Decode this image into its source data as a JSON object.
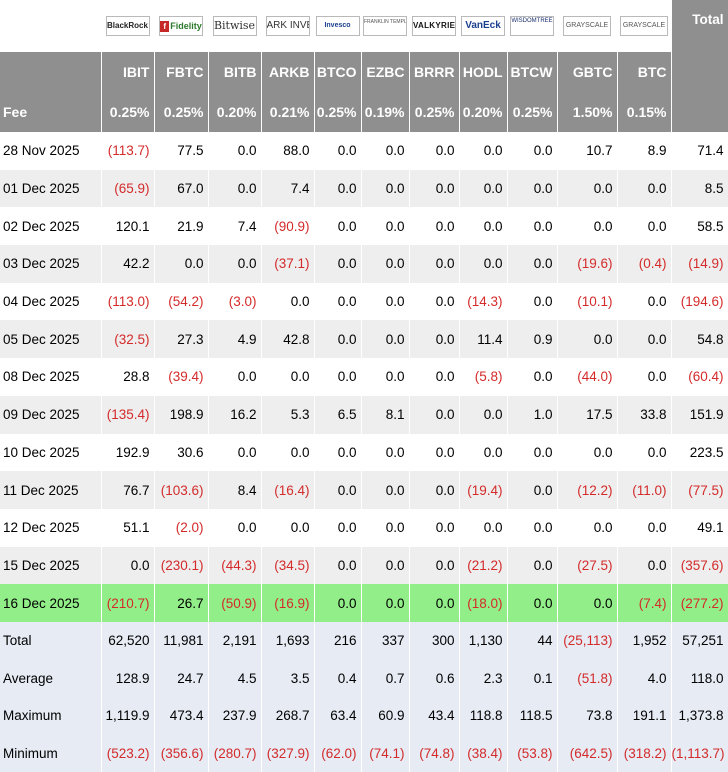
{
  "header": {
    "total_label": "Total",
    "fee_label": "Fee",
    "logos": [
      {
        "text": "BlackRock",
        "icon": "blackrock-logo"
      },
      {
        "text": "Fidelity",
        "icon": "fidelity-logo"
      },
      {
        "text": "Bitwise",
        "icon": "bitwise-logo"
      },
      {
        "text": "ARK INVEST",
        "icon": "ark-invest-logo"
      },
      {
        "text": "Invesco",
        "icon": "invesco-logo"
      },
      {
        "text": "FRANKLIN TEMPLETON",
        "icon": "franklin-templeton-logo"
      },
      {
        "text": "VALKYRIE",
        "icon": "valkyrie-logo"
      },
      {
        "text": "VanEck",
        "icon": "vaneck-logo"
      },
      {
        "text": "WISDOMTREE",
        "icon": "wisdomtree-logo"
      },
      {
        "text": "GRAYSCALE",
        "icon": "grayscale-logo"
      },
      {
        "text": "GRAYSCALE",
        "icon": "grayscale-logo"
      }
    ],
    "tickers": [
      "IBIT",
      "FBTC",
      "BITB",
      "ARKB",
      "BTCO",
      "EZBC",
      "BRRR",
      "HODL",
      "BTCW",
      "GBTC",
      "BTC"
    ],
    "fees": [
      "0.25%",
      "0.25%",
      "0.20%",
      "0.21%",
      "0.25%",
      "0.19%",
      "0.25%",
      "0.20%",
      "0.25%",
      "1.50%",
      "0.15%"
    ]
  },
  "rows": [
    {
      "date": "28 Nov 2025",
      "values": [
        "(113.7)",
        "77.5",
        "0.0",
        "88.0",
        "0.0",
        "0.0",
        "0.0",
        "0.0",
        "0.0",
        "10.7",
        "8.9"
      ],
      "total": "71.4"
    },
    {
      "date": "01 Dec 2025",
      "values": [
        "(65.9)",
        "67.0",
        "0.0",
        "7.4",
        "0.0",
        "0.0",
        "0.0",
        "0.0",
        "0.0",
        "0.0",
        "0.0"
      ],
      "total": "8.5"
    },
    {
      "date": "02 Dec 2025",
      "values": [
        "120.1",
        "21.9",
        "7.4",
        "(90.9)",
        "0.0",
        "0.0",
        "0.0",
        "0.0",
        "0.0",
        "0.0",
        "0.0"
      ],
      "total": "58.5"
    },
    {
      "date": "03 Dec 2025",
      "values": [
        "42.2",
        "0.0",
        "0.0",
        "(37.1)",
        "0.0",
        "0.0",
        "0.0",
        "0.0",
        "0.0",
        "(19.6)",
        "(0.4)"
      ],
      "total": "(14.9)"
    },
    {
      "date": "04 Dec 2025",
      "values": [
        "(113.0)",
        "(54.2)",
        "(3.0)",
        "0.0",
        "0.0",
        "0.0",
        "0.0",
        "(14.3)",
        "0.0",
        "(10.1)",
        "0.0"
      ],
      "total": "(194.6)"
    },
    {
      "date": "05 Dec 2025",
      "values": [
        "(32.5)",
        "27.3",
        "4.9",
        "42.8",
        "0.0",
        "0.0",
        "0.0",
        "11.4",
        "0.9",
        "0.0",
        "0.0"
      ],
      "total": "54.8"
    },
    {
      "date": "08 Dec 2025",
      "values": [
        "28.8",
        "(39.4)",
        "0.0",
        "0.0",
        "0.0",
        "0.0",
        "0.0",
        "(5.8)",
        "0.0",
        "(44.0)",
        "0.0"
      ],
      "total": "(60.4)"
    },
    {
      "date": "09 Dec 2025",
      "values": [
        "(135.4)",
        "198.9",
        "16.2",
        "5.3",
        "6.5",
        "8.1",
        "0.0",
        "0.0",
        "1.0",
        "17.5",
        "33.8"
      ],
      "total": "151.9"
    },
    {
      "date": "10 Dec 2025",
      "values": [
        "192.9",
        "30.6",
        "0.0",
        "0.0",
        "0.0",
        "0.0",
        "0.0",
        "0.0",
        "0.0",
        "0.0",
        "0.0"
      ],
      "total": "223.5"
    },
    {
      "date": "11 Dec 2025",
      "values": [
        "76.7",
        "(103.6)",
        "8.4",
        "(16.4)",
        "0.0",
        "0.0",
        "0.0",
        "(19.4)",
        "0.0",
        "(12.2)",
        "(11.0)"
      ],
      "total": "(77.5)"
    },
    {
      "date": "12 Dec 2025",
      "values": [
        "51.1",
        "(2.0)",
        "0.0",
        "0.0",
        "0.0",
        "0.0",
        "0.0",
        "0.0",
        "0.0",
        "0.0",
        "0.0"
      ],
      "total": "49.1"
    },
    {
      "date": "15 Dec 2025",
      "values": [
        "0.0",
        "(230.1)",
        "(44.3)",
        "(34.5)",
        "0.0",
        "0.0",
        "0.0",
        "(21.2)",
        "0.0",
        "(27.5)",
        "0.0"
      ],
      "total": "(357.6)"
    },
    {
      "date": "16 Dec 2025",
      "values": [
        "(210.7)",
        "26.7",
        "(50.9)",
        "(16.9)",
        "0.0",
        "0.0",
        "0.0",
        "(18.0)",
        "0.0",
        "0.0",
        "(7.4)"
      ],
      "total": "(277.2)",
      "highlight": true
    }
  ],
  "stats": [
    {
      "label": "Total",
      "values": [
        "62,520",
        "11,981",
        "2,191",
        "1,693",
        "216",
        "337",
        "300",
        "1,130",
        "44",
        "(25,113)",
        "1,952"
      ],
      "total": "57,251"
    },
    {
      "label": "Average",
      "values": [
        "128.9",
        "24.7",
        "4.5",
        "3.5",
        "0.4",
        "0.7",
        "0.6",
        "2.3",
        "0.1",
        "(51.8)",
        "4.0"
      ],
      "total": "118.0"
    },
    {
      "label": "Maximum",
      "values": [
        "1,119.9",
        "473.4",
        "237.9",
        "268.7",
        "63.4",
        "60.9",
        "43.4",
        "118.8",
        "118.5",
        "73.8",
        "191.1"
      ],
      "total": "1,373.8"
    },
    {
      "label": "Minimum",
      "values": [
        "(523.2)",
        "(356.6)",
        "(280.7)",
        "(327.9)",
        "(62.0)",
        "(74.1)",
        "(74.8)",
        "(38.4)",
        "(53.8)",
        "(642.5)",
        "(318.2)"
      ],
      "total": "(1,113.7)"
    }
  ],
  "colors": {
    "header_bg": "#8f8f8f",
    "negative": "#d42a2a",
    "highlight_row": "#92ee88",
    "stats_bg": "#e6ebf4",
    "stripe": "#eeeeee"
  }
}
